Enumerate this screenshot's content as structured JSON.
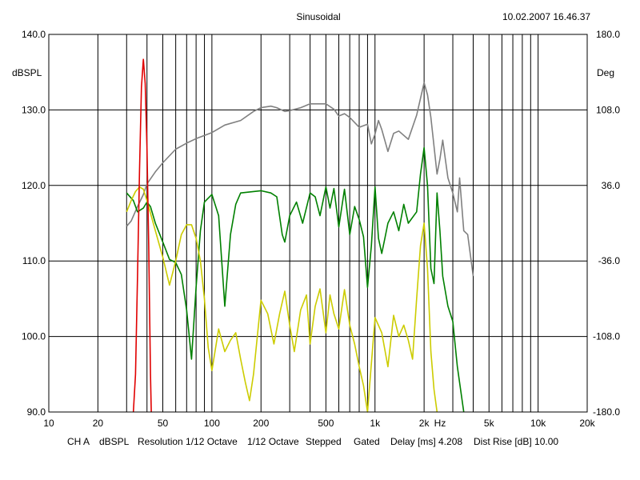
{
  "header": {
    "title": "Sinusoidal",
    "timestamp": "10.02.2007 16.46.37"
  },
  "footer": {
    "channel": "CH A",
    "unit": "dBSPL",
    "resolution": "Resolution 1/12 Octave",
    "smoothing": "1/12 Octave",
    "mode": "Stepped",
    "gating": "Gated",
    "delay": "Delay [ms] 4.208",
    "dist_rise": "Dist Rise [dB] 10.00"
  },
  "chart_data": {
    "type": "line",
    "title": "Sinusoidal",
    "xlabel": "Hz",
    "ylabel": "dBSPL",
    "y2label": "Deg",
    "xscale": "log",
    "xlim": [
      10,
      20000
    ],
    "ylim": [
      90,
      140
    ],
    "y2lim": [
      -180,
      180
    ],
    "grid": true,
    "x_ticks": [
      {
        "value": 10,
        "label": "10"
      },
      {
        "value": 20,
        "label": "20"
      },
      {
        "value": 50,
        "label": "50"
      },
      {
        "value": 100,
        "label": "100"
      },
      {
        "value": 200,
        "label": "200"
      },
      {
        "value": 500,
        "label": "500"
      },
      {
        "value": 1000,
        "label": "1k"
      },
      {
        "value": 2000,
        "label": "2k"
      },
      {
        "value": 5000,
        "label": "5k"
      },
      {
        "value": 10000,
        "label": "10k"
      },
      {
        "value": 20000,
        "label": "20k"
      }
    ],
    "y_ticks": [
      {
        "value": 90,
        "label": "90.0"
      },
      {
        "value": 100,
        "label": "100.0"
      },
      {
        "value": 110,
        "label": "110.0"
      },
      {
        "value": 120,
        "label": "120.0"
      },
      {
        "value": 130,
        "label": "130.0"
      },
      {
        "value": 140,
        "label": "140.0"
      }
    ],
    "y2_ticks": [
      {
        "value": 180,
        "label": "180.0"
      },
      {
        "value": 108,
        "label": "108.0"
      },
      {
        "value": 36,
        "label": "36.0"
      },
      {
        "value": -36,
        "label": "-36.0"
      },
      {
        "value": -108,
        "label": "-108.0"
      },
      {
        "value": -180,
        "label": "-180.0"
      }
    ],
    "series": [
      {
        "color": "#808080",
        "points": [
          [
            30,
            114.6
          ],
          [
            32,
            115.3
          ],
          [
            35,
            117.2
          ],
          [
            38,
            118.8
          ],
          [
            40,
            120.2
          ],
          [
            45,
            121.8
          ],
          [
            50,
            123.0
          ],
          [
            60,
            124.8
          ],
          [
            70,
            125.6
          ],
          [
            80,
            126.2
          ],
          [
            100,
            127.0
          ],
          [
            120,
            128.0
          ],
          [
            150,
            128.6
          ],
          [
            180,
            129.8
          ],
          [
            200,
            130.3
          ],
          [
            230,
            130.5
          ],
          [
            250,
            130.3
          ],
          [
            280,
            129.8
          ],
          [
            300,
            129.9
          ],
          [
            350,
            130.3
          ],
          [
            400,
            130.8
          ],
          [
            500,
            130.8
          ],
          [
            560,
            130.1
          ],
          [
            600,
            129.2
          ],
          [
            650,
            129.5
          ],
          [
            700,
            129.0
          ],
          [
            800,
            127.7
          ],
          [
            900,
            128.1
          ],
          [
            950,
            125.5
          ],
          [
            1000,
            126.8
          ],
          [
            1050,
            128.6
          ],
          [
            1100,
            127.4
          ],
          [
            1200,
            124.5
          ],
          [
            1300,
            126.9
          ],
          [
            1400,
            127.2
          ],
          [
            1600,
            126.1
          ],
          [
            1800,
            129.3
          ],
          [
            2000,
            133.6
          ],
          [
            2100,
            132.0
          ],
          [
            2200,
            129.0
          ],
          [
            2400,
            121.5
          ],
          [
            2500,
            123.5
          ],
          [
            2600,
            126.0
          ],
          [
            2800,
            121.0
          ],
          [
            3000,
            119.0
          ],
          [
            3200,
            116.5
          ],
          [
            3300,
            121.0
          ],
          [
            3500,
            114.0
          ],
          [
            3700,
            113.5
          ],
          [
            4000,
            108.0
          ]
        ]
      },
      {
        "color": "#008000",
        "points": [
          [
            30,
            119.0
          ],
          [
            33,
            118.0
          ],
          [
            35,
            116.5
          ],
          [
            38,
            117.0
          ],
          [
            40,
            117.8
          ],
          [
            42,
            117.2
          ],
          [
            45,
            115.0
          ],
          [
            50,
            112.5
          ],
          [
            55,
            110.2
          ],
          [
            60,
            109.8
          ],
          [
            65,
            108.2
          ],
          [
            70,
            103.5
          ],
          [
            75,
            97.0
          ],
          [
            80,
            106.5
          ],
          [
            85,
            114.0
          ],
          [
            90,
            117.8
          ],
          [
            100,
            118.8
          ],
          [
            110,
            116.0
          ],
          [
            120,
            104.0
          ],
          [
            130,
            113.5
          ],
          [
            140,
            117.5
          ],
          [
            150,
            119.0
          ],
          [
            180,
            119.2
          ],
          [
            200,
            119.3
          ],
          [
            230,
            119.0
          ],
          [
            250,
            118.5
          ],
          [
            270,
            113.5
          ],
          [
            280,
            112.5
          ],
          [
            300,
            116.0
          ],
          [
            330,
            117.8
          ],
          [
            360,
            115.0
          ],
          [
            400,
            119.0
          ],
          [
            430,
            118.5
          ],
          [
            460,
            116.0
          ],
          [
            500,
            119.8
          ],
          [
            530,
            117.0
          ],
          [
            560,
            119.6
          ],
          [
            600,
            114.5
          ],
          [
            650,
            119.5
          ],
          [
            700,
            113.5
          ],
          [
            750,
            117.2
          ],
          [
            800,
            115.5
          ],
          [
            850,
            113.2
          ],
          [
            900,
            106.5
          ],
          [
            950,
            112.0
          ],
          [
            1000,
            119.8
          ],
          [
            1050,
            113.0
          ],
          [
            1100,
            111.0
          ],
          [
            1150,
            113.0
          ],
          [
            1200,
            115.0
          ],
          [
            1300,
            116.5
          ],
          [
            1400,
            114.0
          ],
          [
            1500,
            117.5
          ],
          [
            1600,
            115.0
          ],
          [
            1800,
            116.5
          ],
          [
            1900,
            121.5
          ],
          [
            2000,
            125.0
          ],
          [
            2100,
            120.0
          ],
          [
            2200,
            109.0
          ],
          [
            2300,
            107.0
          ],
          [
            2400,
            119.0
          ],
          [
            2500,
            114.0
          ],
          [
            2600,
            108.0
          ],
          [
            2800,
            104.0
          ],
          [
            3000,
            102.0
          ],
          [
            3200,
            96.0
          ],
          [
            3500,
            90.0
          ]
        ]
      },
      {
        "color": "#cccc00",
        "points": [
          [
            30,
            116.5
          ],
          [
            32,
            118.0
          ],
          [
            34,
            119.2
          ],
          [
            36,
            119.8
          ],
          [
            38,
            119.5
          ],
          [
            40,
            118.0
          ],
          [
            45,
            114.0
          ],
          [
            50,
            110.5
          ],
          [
            55,
            106.8
          ],
          [
            60,
            110.0
          ],
          [
            65,
            113.5
          ],
          [
            70,
            114.8
          ],
          [
            75,
            114.8
          ],
          [
            80,
            113.0
          ],
          [
            85,
            110.0
          ],
          [
            90,
            105.0
          ],
          [
            95,
            98.5
          ],
          [
            100,
            95.5
          ],
          [
            110,
            101.0
          ],
          [
            120,
            98.0
          ],
          [
            130,
            99.5
          ],
          [
            140,
            100.5
          ],
          [
            150,
            97.0
          ],
          [
            160,
            94.0
          ],
          [
            170,
            91.5
          ],
          [
            180,
            95.0
          ],
          [
            200,
            104.8
          ],
          [
            220,
            103.0
          ],
          [
            240,
            99.0
          ],
          [
            260,
            103.0
          ],
          [
            280,
            106.0
          ],
          [
            300,
            101.5
          ],
          [
            320,
            98.0
          ],
          [
            350,
            103.5
          ],
          [
            380,
            105.5
          ],
          [
            400,
            99.0
          ],
          [
            430,
            104.0
          ],
          [
            460,
            106.3
          ],
          [
            500,
            100.5
          ],
          [
            530,
            105.5
          ],
          [
            560,
            103.0
          ],
          [
            600,
            101.0
          ],
          [
            650,
            106.2
          ],
          [
            700,
            101.5
          ],
          [
            750,
            99.0
          ],
          [
            800,
            96.0
          ],
          [
            850,
            93.5
          ],
          [
            900,
            90.0
          ],
          [
            1000,
            102.5
          ],
          [
            1100,
            100.5
          ],
          [
            1200,
            96.0
          ],
          [
            1300,
            102.8
          ],
          [
            1400,
            100.0
          ],
          [
            1500,
            101.5
          ],
          [
            1600,
            99.5
          ],
          [
            1700,
            97.0
          ],
          [
            1800,
            105.0
          ],
          [
            1900,
            112.0
          ],
          [
            2000,
            115.0
          ],
          [
            2100,
            109.0
          ],
          [
            2200,
            98.0
          ],
          [
            2300,
            93.0
          ],
          [
            2400,
            90.0
          ]
        ]
      },
      {
        "color": "#e00000",
        "points": [
          [
            33,
            90.0
          ],
          [
            34,
            95.0
          ],
          [
            35,
            108.0
          ],
          [
            36,
            122.0
          ],
          [
            37,
            133.0
          ],
          [
            38,
            136.7
          ],
          [
            39,
            133.5
          ],
          [
            40,
            125.0
          ],
          [
            41,
            112.0
          ],
          [
            42,
            95.0
          ],
          [
            42.5,
            90.0
          ]
        ]
      }
    ]
  }
}
